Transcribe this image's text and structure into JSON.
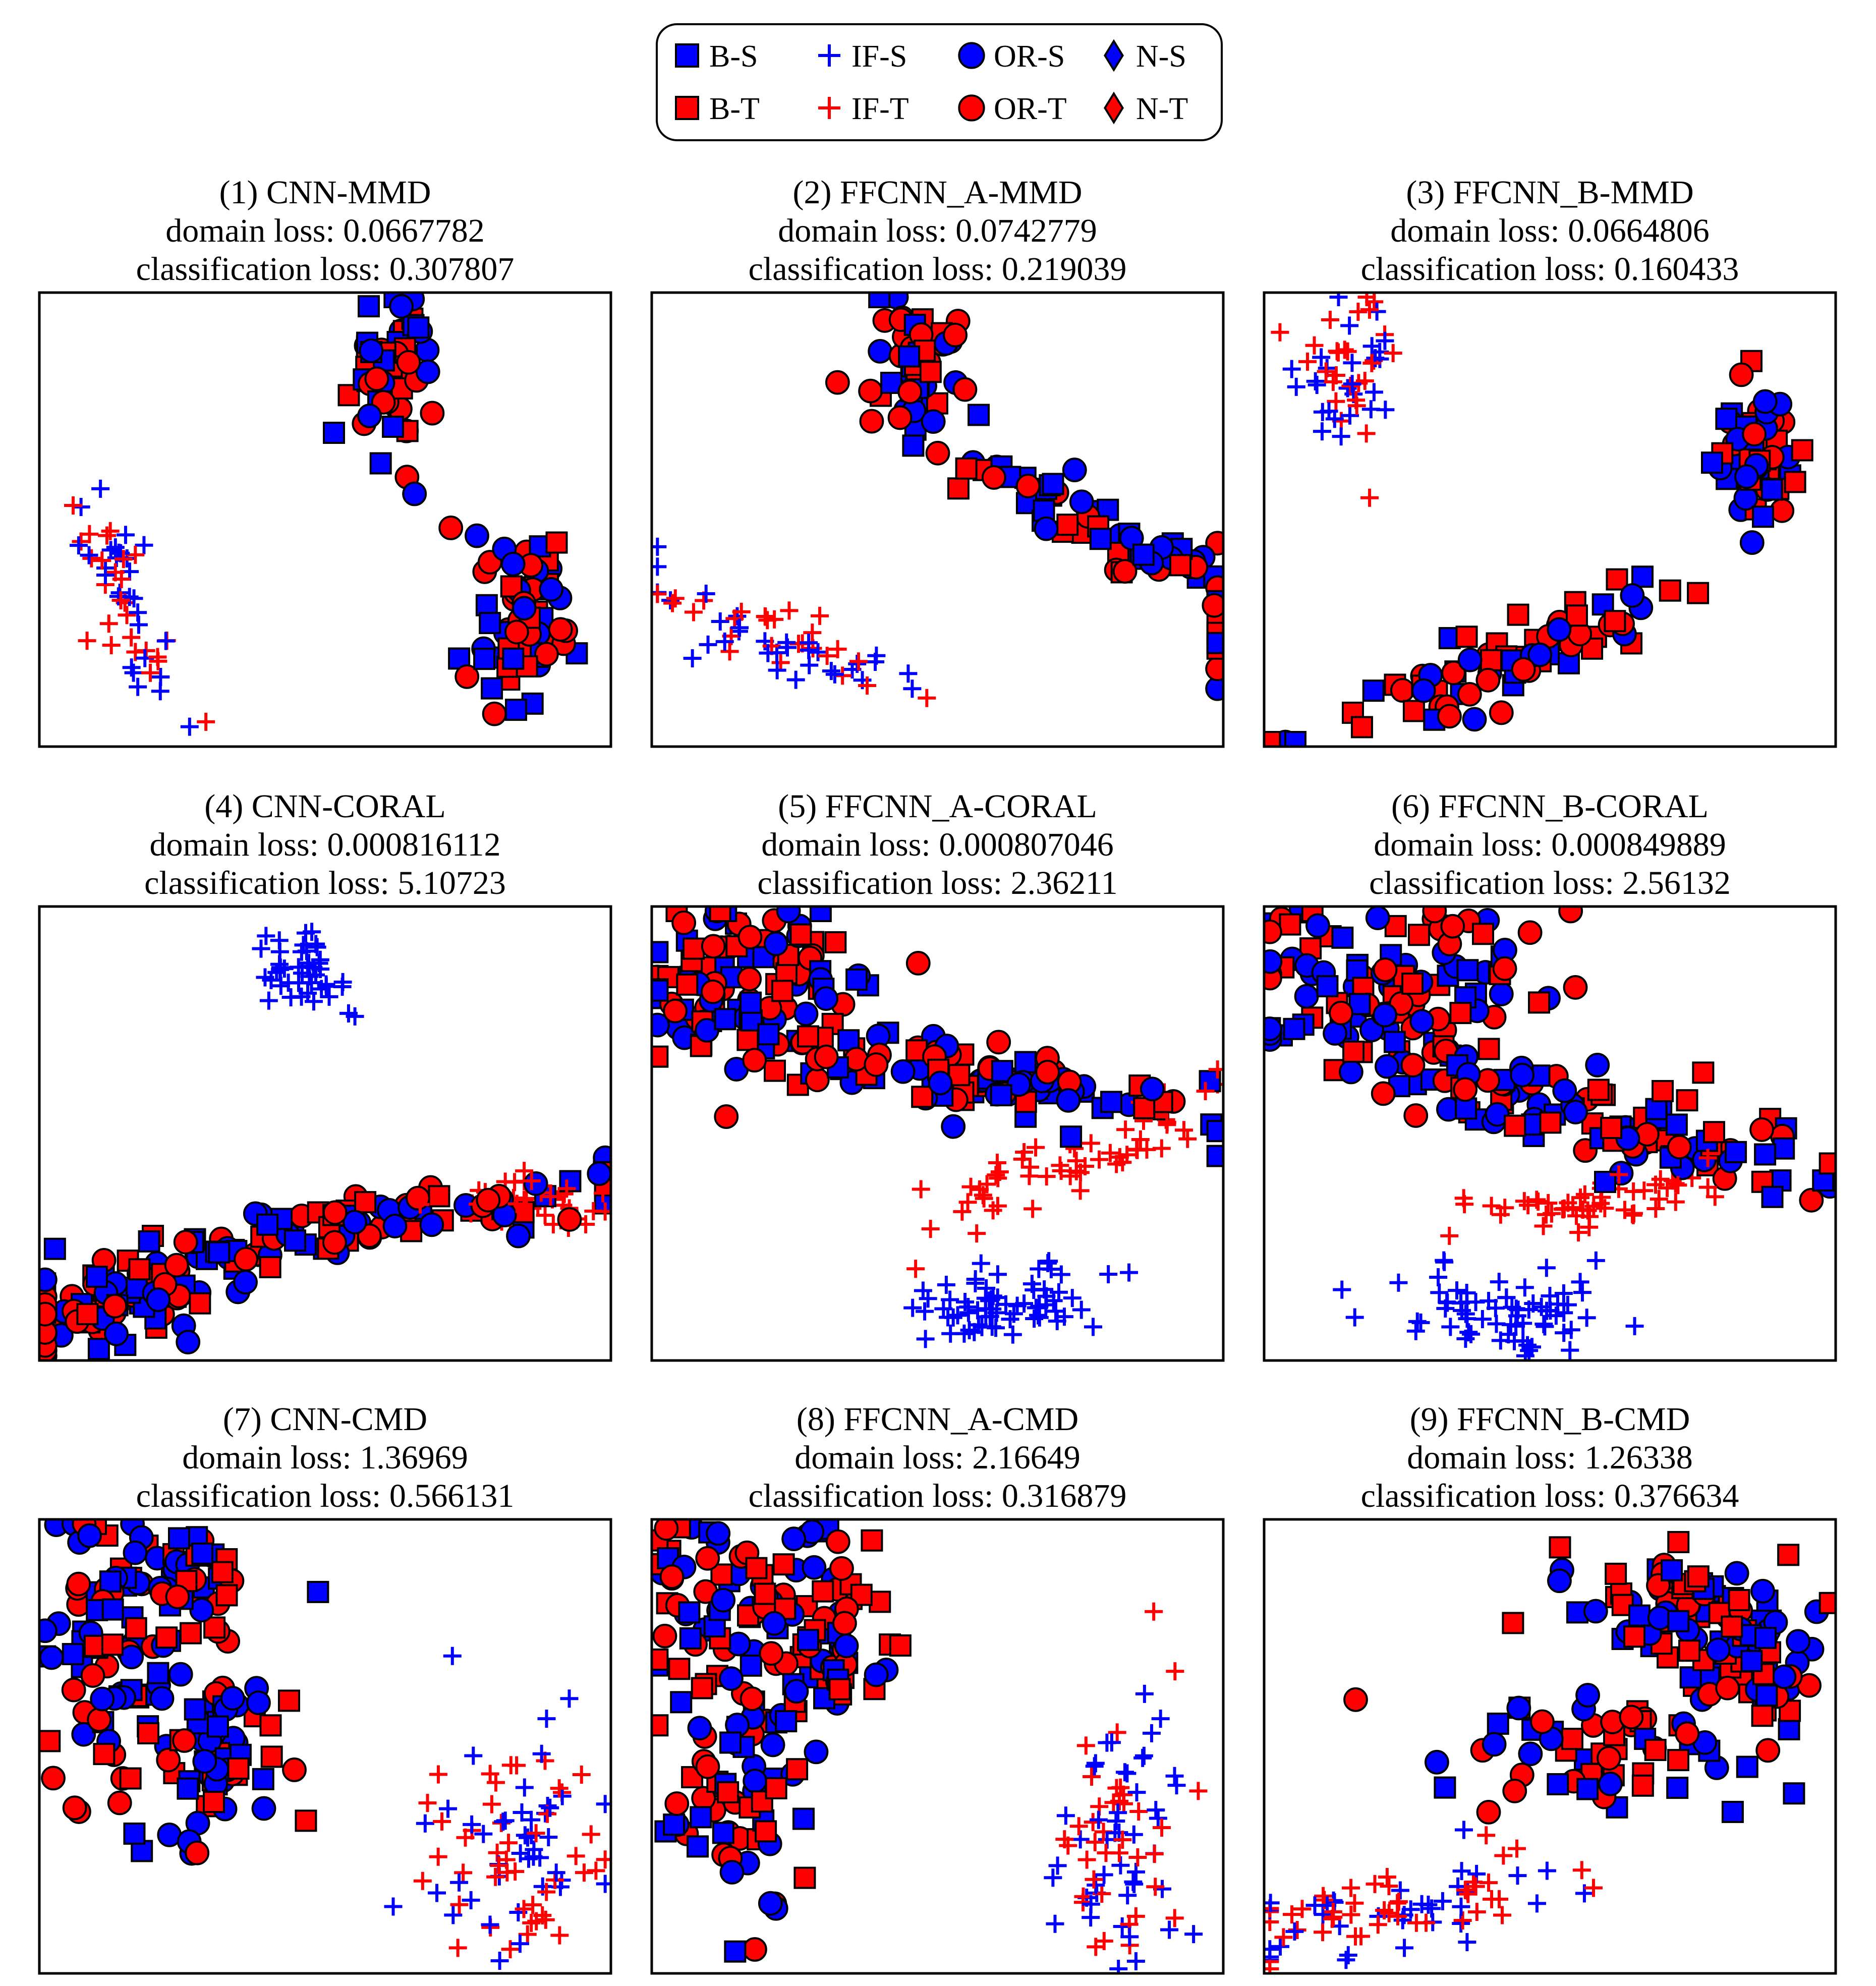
{
  "legend": {
    "entries": [
      {
        "label": "B-S",
        "marker": "square",
        "color": "#0000ff"
      },
      {
        "label": "IF-S",
        "marker": "plus",
        "color": "#0000ff"
      },
      {
        "label": "OR-S",
        "marker": "circle",
        "color": "#0000ff"
      },
      {
        "label": "N-S",
        "marker": "diamond",
        "color": "#0000ff"
      },
      {
        "label": "B-T",
        "marker": "square",
        "color": "#ff0000"
      },
      {
        "label": "IF-T",
        "marker": "plus",
        "color": "#ff0000"
      },
      {
        "label": "OR-T",
        "marker": "circle",
        "color": "#ff0000"
      },
      {
        "label": "N-T",
        "marker": "diamond",
        "color": "#ff0000"
      }
    ]
  },
  "colors": {
    "source": "#0000ff",
    "target": "#ff0000",
    "edge": "#000000"
  },
  "chart_data": [
    {
      "type": "scatter",
      "title": "(1) CNN-MMD",
      "domain_loss": "domain loss: 0.0667782",
      "classification_loss": "classification loss: 0.307807",
      "clusters": [
        {
          "classes": [
            "B",
            "OR"
          ],
          "center": [
            0.62,
            0.18
          ],
          "spread": [
            0.035,
            0.08
          ],
          "angle": 0,
          "n": 60
        },
        {
          "classes": [
            "OR",
            "B"
          ],
          "center": [
            0.84,
            0.71
          ],
          "spread": [
            0.05,
            0.09
          ],
          "angle": 0,
          "n": 70
        },
        {
          "classes": [
            "IF"
          ],
          "center": [
            0.14,
            0.68
          ],
          "spread": [
            0.03,
            0.14
          ],
          "angle": -20,
          "n": 55
        }
      ]
    },
    {
      "type": "scatter",
      "title": "(2) FFCNN_A-MMD",
      "domain_loss": "domain loss: 0.0742779",
      "classification_loss": "classification loss: 0.219039",
      "clusters": [
        {
          "classes": [
            "B",
            "OR"
          ],
          "center": [
            0.47,
            0.18
          ],
          "spread": [
            0.04,
            0.08
          ],
          "angle": 0,
          "n": 55
        },
        {
          "classes": [
            "OR",
            "B"
          ],
          "center": [
            0.78,
            0.52
          ],
          "spread": [
            0.22,
            0.035
          ],
          "angle": 32,
          "n": 75
        },
        {
          "classes": [
            "IF"
          ],
          "center": [
            0.2,
            0.76
          ],
          "spread": [
            0.17,
            0.035
          ],
          "angle": 24,
          "n": 60
        }
      ]
    },
    {
      "type": "scatter",
      "title": "(3) FFCNN_B-MMD",
      "domain_loss": "domain loss: 0.0664806",
      "classification_loss": "classification loss: 0.160433",
      "clusters": [
        {
          "classes": [
            "IF"
          ],
          "center": [
            0.14,
            0.2
          ],
          "spread": [
            0.05,
            0.1
          ],
          "angle": 20,
          "n": 55
        },
        {
          "classes": [
            "B",
            "OR"
          ],
          "center": [
            0.86,
            0.34
          ],
          "spread": [
            0.035,
            0.08
          ],
          "angle": 0,
          "n": 60
        },
        {
          "classes": [
            "OR",
            "B"
          ],
          "center": [
            0.43,
            0.81
          ],
          "spread": [
            0.18,
            0.04
          ],
          "angle": -28,
          "n": 70
        }
      ]
    },
    {
      "type": "scatter",
      "title": "(4) CNN-CORAL",
      "domain_loss": "domain loss: 0.000816112",
      "classification_loss": "classification loss: 5.10723",
      "clusters": [
        {
          "classes": [
            "IF-S"
          ],
          "center": [
            0.45,
            0.14
          ],
          "spread": [
            0.045,
            0.05
          ],
          "angle": -30,
          "n": 45
        },
        {
          "classes": [
            "OR",
            "B"
          ],
          "center": [
            0.15,
            0.87
          ],
          "spread": [
            0.12,
            0.05
          ],
          "angle": -20,
          "n": 90
        },
        {
          "classes": [
            "B",
            "OR"
          ],
          "center": [
            0.55,
            0.7
          ],
          "spread": [
            0.28,
            0.03
          ],
          "angle": -11,
          "n": 90
        },
        {
          "classes": [
            "IF-T"
          ],
          "center": [
            0.86,
            0.65
          ],
          "spread": [
            0.08,
            0.025
          ],
          "angle": 0,
          "n": 40
        }
      ]
    },
    {
      "type": "scatter",
      "title": "(5) FFCNN_A-CORAL",
      "domain_loss": "domain loss: 0.000807046",
      "classification_loss": "classification loss: 2.36211",
      "clusters": [
        {
          "classes": [
            "OR",
            "B"
          ],
          "center": [
            0.18,
            0.17
          ],
          "spread": [
            0.11,
            0.1
          ],
          "angle": 0,
          "n": 110
        },
        {
          "classes": [
            "B",
            "OR"
          ],
          "center": [
            0.55,
            0.38
          ],
          "spread": [
            0.2,
            0.04
          ],
          "angle": 10,
          "n": 95
        },
        {
          "classes": [
            "IF-T"
          ],
          "center": [
            0.75,
            0.55
          ],
          "spread": [
            0.17,
            0.04
          ],
          "angle": -25,
          "n": 60
        },
        {
          "classes": [
            "IF-S"
          ],
          "center": [
            0.62,
            0.88
          ],
          "spread": [
            0.08,
            0.045
          ],
          "angle": -10,
          "n": 70
        }
      ]
    },
    {
      "type": "scatter",
      "title": "(6) FFCNN_B-CORAL",
      "domain_loss": "domain loss: 0.000849889",
      "classification_loss": "classification loss: 2.56132",
      "clusters": [
        {
          "classes": [
            "OR",
            "B"
          ],
          "center": [
            0.22,
            0.17
          ],
          "spread": [
            0.14,
            0.09
          ],
          "angle": 0,
          "n": 110
        },
        {
          "classes": [
            "B",
            "OR"
          ],
          "center": [
            0.6,
            0.47
          ],
          "spread": [
            0.22,
            0.05
          ],
          "angle": 18,
          "n": 110
        },
        {
          "classes": [
            "IF-T"
          ],
          "center": [
            0.6,
            0.65
          ],
          "spread": [
            0.13,
            0.03
          ],
          "angle": -8,
          "n": 55
        },
        {
          "classes": [
            "IF-S"
          ],
          "center": [
            0.41,
            0.88
          ],
          "spread": [
            0.1,
            0.045
          ],
          "angle": 0,
          "n": 70
        }
      ]
    },
    {
      "type": "scatter",
      "title": "(7) CNN-CMD",
      "domain_loss": "domain loss: 1.36969",
      "classification_loss": "classification loss: 0.566131",
      "clusters": [
        {
          "classes": [
            "OR",
            "B"
          ],
          "center": [
            0.12,
            0.3
          ],
          "spread": [
            0.06,
            0.17
          ],
          "angle": 0,
          "n": 80
        },
        {
          "classes": [
            "OR",
            "B"
          ],
          "center": [
            0.25,
            0.12
          ],
          "spread": [
            0.06,
            0.05
          ],
          "angle": 0,
          "n": 40
        },
        {
          "classes": [
            "B",
            "OR"
          ],
          "center": [
            0.32,
            0.5
          ],
          "spread": [
            0.06,
            0.14
          ],
          "angle": 0,
          "n": 65
        },
        {
          "classes": [
            "IF"
          ],
          "center": [
            0.84,
            0.72
          ],
          "spread": [
            0.08,
            0.13
          ],
          "angle": 0,
          "n": 90
        }
      ]
    },
    {
      "type": "scatter",
      "title": "(8) FFCNN_A-CMD",
      "domain_loss": "domain loss: 2.16649",
      "classification_loss": "classification loss: 0.316879",
      "clusters": [
        {
          "classes": [
            "OR",
            "B"
          ],
          "center": [
            0.13,
            0.18
          ],
          "spread": [
            0.07,
            0.09
          ],
          "angle": 0,
          "n": 60
        },
        {
          "classes": [
            "OR",
            "B"
          ],
          "center": [
            0.32,
            0.22
          ],
          "spread": [
            0.04,
            0.12
          ],
          "angle": 0,
          "n": 55
        },
        {
          "classes": [
            "B",
            "OR"
          ],
          "center": [
            0.17,
            0.55
          ],
          "spread": [
            0.07,
            0.15
          ],
          "angle": 0,
          "n": 75
        },
        {
          "classes": [
            "IF"
          ],
          "center": [
            0.83,
            0.72
          ],
          "spread": [
            0.06,
            0.16
          ],
          "angle": 0,
          "n": 85
        }
      ]
    },
    {
      "type": "scatter",
      "title": "(9) FFCNN_B-CMD",
      "domain_loss": "domain loss: 1.26338",
      "classification_loss": "classification loss: 0.376634",
      "clusters": [
        {
          "classes": [
            "OR",
            "B"
          ],
          "center": [
            0.72,
            0.18
          ],
          "spread": [
            0.1,
            0.06
          ],
          "angle": 0,
          "n": 65
        },
        {
          "classes": [
            "OR",
            "B"
          ],
          "center": [
            0.87,
            0.33
          ],
          "spread": [
            0.05,
            0.09
          ],
          "angle": 0,
          "n": 55
        },
        {
          "classes": [
            "B",
            "OR"
          ],
          "center": [
            0.6,
            0.48
          ],
          "spread": [
            0.12,
            0.06
          ],
          "angle": -10,
          "n": 60
        },
        {
          "classes": [
            "IF"
          ],
          "center": [
            0.25,
            0.85
          ],
          "spread": [
            0.19,
            0.045
          ],
          "angle": -14,
          "n": 85
        }
      ]
    }
  ]
}
